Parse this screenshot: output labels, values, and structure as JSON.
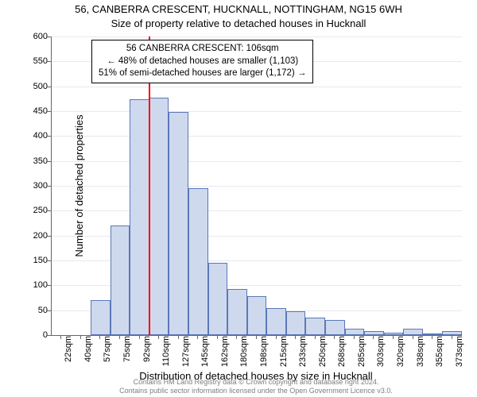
{
  "titles": {
    "line1": "56, CANBERRA CRESCENT, HUCKNALL, NOTTINGHAM, NG15 6WH",
    "line2": "Size of property relative to detached houses in Hucknall"
  },
  "axes": {
    "ylabel": "Number of detached properties",
    "xlabel": "Distribution of detached houses by size in Hucknall",
    "ylim": [
      0,
      600
    ],
    "ytick_step": 50,
    "label_fontsize": 13,
    "tick_fontsize": 11
  },
  "style": {
    "bar_fill": "#cfd9ee",
    "bar_stroke": "#5b78b8",
    "grid_color": "#e7e9eb",
    "axis_color": "#666666",
    "marker_line_color": "#ff0000",
    "background_color": "#ffffff",
    "bar_width_ratio": 1.0
  },
  "histogram": {
    "type": "histogram",
    "bin_labels": [
      "22sqm",
      "40sqm",
      "57sqm",
      "75sqm",
      "92sqm",
      "110sqm",
      "127sqm",
      "145sqm",
      "162sqm",
      "180sqm",
      "198sqm",
      "215sqm",
      "233sqm",
      "250sqm",
      "268sqm",
      "285sqm",
      "303sqm",
      "320sqm",
      "338sqm",
      "355sqm",
      "373sqm"
    ],
    "counts": [
      0,
      0,
      70,
      220,
      474,
      477,
      448,
      295,
      146,
      93,
      78,
      54,
      48,
      35,
      30,
      13,
      8,
      5,
      12,
      4,
      8
    ],
    "marker_bin_index": 5,
    "marker_value_sqm": 106
  },
  "infobox": {
    "line1": "56 CANBERRA CRESCENT: 106sqm",
    "line2": "← 48% of detached houses are smaller (1,103)",
    "line3": "51% of semi-detached houses are larger (1,172) →"
  },
  "footer": {
    "line1": "Contains HM Land Registry data © Crown copyright and database right 2024.",
    "line2": "Contains public sector information licensed under the Open Government Licence v3.0."
  }
}
